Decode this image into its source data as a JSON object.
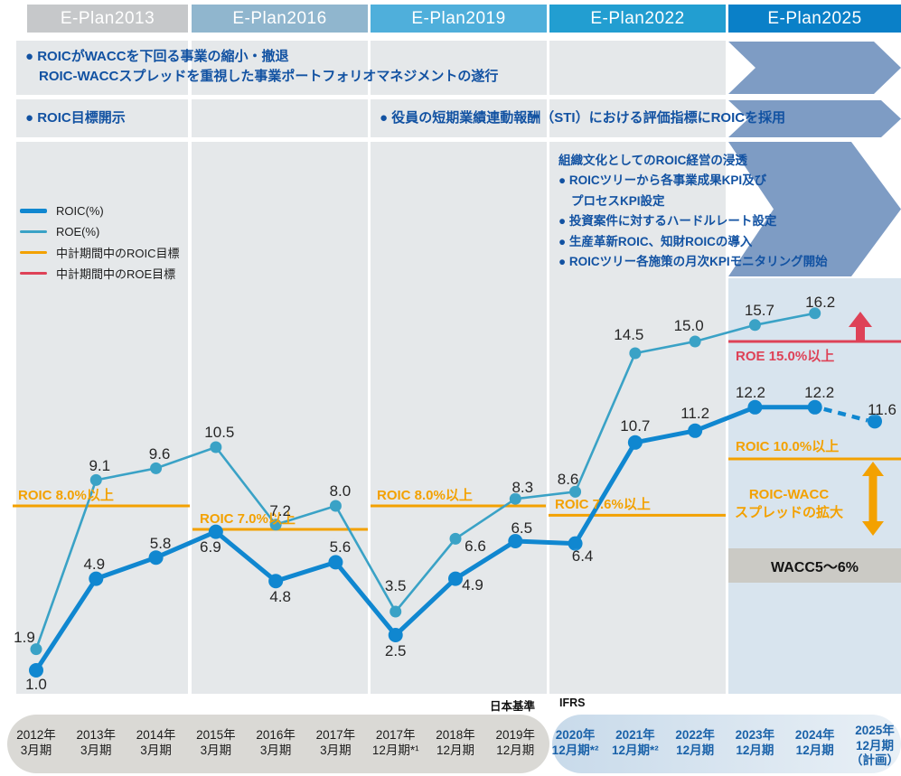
{
  "headers": [
    {
      "label": "E-Plan2013",
      "color": "#c6c8ca"
    },
    {
      "label": "E-Plan2016",
      "color": "#90b6ce"
    },
    {
      "label": "E-Plan2019",
      "color": "#4fafdb"
    },
    {
      "label": "E-Plan2022",
      "color": "#229ed1"
    },
    {
      "label": "E-Plan2025",
      "color": "#0a80c8"
    }
  ],
  "colors": {
    "roic_line": "#1087d0",
    "roe_line": "#3aa2c6",
    "target_orange": "#f3a100",
    "target_red": "#de4257",
    "deep_blue_text": "#1252a2",
    "continuation_arrow": "#7e9cc4",
    "column_gray": "#e5e8ea",
    "column_blue": "#d8e4ee"
  },
  "rows": {
    "row1_line1": "● ROICがWACCを下回る事業の縮小・撤退",
    "row1_line2": "ROIC-WACCスプレッドを重視した事業ポートフォリオマネジメントの遂行",
    "row2_left": "● ROIC目標開示",
    "row2_right": "● 役員の短期業績連動報酬（STI）における評価指標にROICを採用"
  },
  "culture_lines": [
    {
      "style": "title",
      "text": "組織文化としてのROIC経営の浸透"
    },
    {
      "style": "bullet",
      "text": "● ROICツリーから各事業成果KPI及び"
    },
    {
      "style": "cont",
      "text": "プロセスKPI設定"
    },
    {
      "style": "bullet",
      "text": "● 投資案件に対するハードルレート設定"
    },
    {
      "style": "bullet",
      "text": "● 生産革新ROIC、知財ROICの導入"
    },
    {
      "style": "bullet",
      "text": "● ROICツリー各施策の月次KPIモニタリング開始"
    }
  ],
  "legend": [
    {
      "label": "ROIC(%)",
      "color": "#1087d0",
      "thickness": 5
    },
    {
      "label": "ROE(%)",
      "color": "#3aa2c6",
      "thickness": 3
    },
    {
      "label": "中計期間中のROIC目標",
      "color": "#f3a100",
      "thickness": 3
    },
    {
      "label": "中計期間中のROE目標",
      "color": "#de4257",
      "thickness": 3
    }
  ],
  "annotations": {
    "spread_line1": "ROIC-WACC",
    "spread_line2": "スプレッドの拡大",
    "wacc_label": "WACC5～6%"
  },
  "axis": {
    "gaap_label": "日本基準",
    "ifrs_label": "IFRS",
    "x_labels": [
      [
        "2012年",
        "3月期"
      ],
      [
        "2013年",
        "3月期"
      ],
      [
        "2014年",
        "3月期"
      ],
      [
        "2015年",
        "3月期"
      ],
      [
        "2016年",
        "3月期"
      ],
      [
        "2017年",
        "3月期"
      ],
      [
        "2017年",
        "12月期*¹"
      ],
      [
        "2018年",
        "12月期"
      ],
      [
        "2019年",
        "12月期"
      ],
      [
        "2020年",
        "12月期*²"
      ],
      [
        "2021年",
        "12月期*²"
      ],
      [
        "2022年",
        "12月期"
      ],
      [
        "2023年",
        "12月期"
      ],
      [
        "2024年",
        "12月期"
      ],
      [
        "2025年",
        "12月期",
        "（計画）"
      ]
    ]
  },
  "chart_data": {
    "type": "line",
    "x": [
      "2012年3月期",
      "2013年3月期",
      "2014年3月期",
      "2015年3月期",
      "2016年3月期",
      "2017年3月期",
      "2017年12月期*1",
      "2018年12月期",
      "2019年12月期",
      "2020年12月期*2",
      "2021年12月期*2",
      "2022年12月期",
      "2023年12月期",
      "2024年12月期",
      "2025年12月期（計画）"
    ],
    "series": [
      {
        "name": "ROIC(%)",
        "color": "#1087d0",
        "values": [
          1.0,
          4.9,
          5.8,
          6.9,
          4.8,
          5.6,
          2.5,
          4.9,
          6.5,
          6.4,
          10.7,
          11.2,
          12.2,
          12.2,
          11.6
        ],
        "last_segment_dashed": true
      },
      {
        "name": "ROE(%)",
        "color": "#3aa2c6",
        "values": [
          1.9,
          9.1,
          9.6,
          10.5,
          7.2,
          8.0,
          3.5,
          6.6,
          8.3,
          8.6,
          14.5,
          15.0,
          15.7,
          16.2,
          null
        ],
        "last_segment_dashed": false
      }
    ],
    "targets": [
      {
        "label": "ROIC 8.0%以上",
        "value": 8.0,
        "plan": "E-Plan2013",
        "color": "#f3a100"
      },
      {
        "label": "ROIC 7.0%以上",
        "value": 7.0,
        "plan": "E-Plan2016",
        "color": "#f3a100"
      },
      {
        "label": "ROIC 8.0%以上",
        "value": 8.0,
        "plan": "E-Plan2019",
        "color": "#f3a100"
      },
      {
        "label": "ROIC 7.6%以上",
        "value": 7.6,
        "plan": "E-Plan2022",
        "color": "#f3a100"
      },
      {
        "label": "ROIC 10.0%以上",
        "value": 10.0,
        "plan": "E-Plan2025",
        "color": "#f3a100"
      },
      {
        "label": "ROE 15.0%以上",
        "value": 15.0,
        "plan": "E-Plan2025",
        "color": "#de4257"
      }
    ],
    "title": "",
    "xlabel": "",
    "ylabel": "",
    "ylim": [
      0,
      23.5
    ],
    "grid": false,
    "legend_position": "upper-left"
  }
}
